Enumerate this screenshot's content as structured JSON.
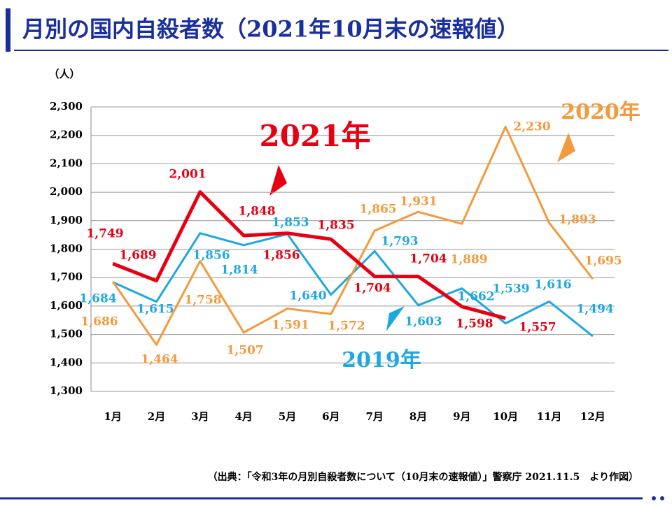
{
  "chart_data": {
    "type": "line",
    "title": "月別の国内自殺者数（2021年10月末の速報値）",
    "y_unit": "（人）",
    "source": "（出典：「令和3年の月別自殺者数について（10月末の速報値）」警察庁 2021.11.5　より作図）",
    "categories": [
      "1月",
      "2月",
      "3月",
      "4月",
      "5月",
      "6月",
      "7月",
      "8月",
      "9月",
      "10月",
      "11月",
      "12月"
    ],
    "ylim": [
      1300,
      2300
    ],
    "yticks": [
      {
        "value": 1300,
        "label": "1,300"
      },
      {
        "value": 1400,
        "label": "1,400"
      },
      {
        "value": 1500,
        "label": "1,500"
      },
      {
        "value": 1600,
        "label": "1,600"
      },
      {
        "value": 1700,
        "label": "1,700"
      },
      {
        "value": 1800,
        "label": "1,800"
      },
      {
        "value": 1900,
        "label": "1,900"
      },
      {
        "value": 2000,
        "label": "2,000"
      },
      {
        "value": 2100,
        "label": "2,100"
      },
      {
        "value": 2200,
        "label": "2,200"
      },
      {
        "value": 2300,
        "label": "2,300"
      }
    ],
    "grid": true,
    "series": [
      {
        "name": "2019年",
        "color": "#1ea8e0",
        "values": [
          1684,
          1615,
          1856,
          1814,
          1853,
          1640,
          1793,
          1603,
          1662,
          1539,
          1616,
          1494
        ],
        "value_labels": [
          "1,684",
          "1,615",
          "1,856",
          "1,814",
          "1,853",
          "1,640",
          "1,793",
          "1,603",
          "1,662",
          "1,539",
          "1,616",
          "1,494"
        ]
      },
      {
        "name": "2020年",
        "color": "#f39a3c",
        "values": [
          1686,
          1464,
          1758,
          1507,
          1591,
          1572,
          1865,
          1931,
          1889,
          2230,
          1893,
          1695
        ],
        "value_labels": [
          "1,686",
          "1,464",
          "1,758",
          "1,507",
          "1,591",
          "1,572",
          "1,865",
          "1,931",
          "1,889",
          "2,230",
          "1,893",
          "1,695"
        ]
      },
      {
        "name": "2021年",
        "color": "#e60012",
        "values": [
          1749,
          1689,
          2001,
          1848,
          1856,
          1835,
          1704,
          1704,
          1598,
          1557,
          null,
          null
        ],
        "value_labels": [
          "1,749",
          "1,689",
          "2,001",
          "1,848",
          "1,856",
          "1,835",
          "1,704",
          "1,704",
          "1,598",
          "1,557",
          null,
          null
        ]
      }
    ]
  }
}
